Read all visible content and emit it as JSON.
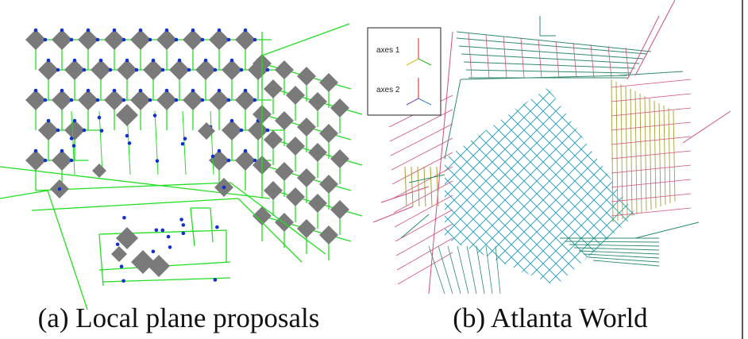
{
  "panels": [
    {
      "caption": "(a) Local plane proposals"
    },
    {
      "caption": "(b) Atlanta World",
      "legend": [
        "axes 1",
        "axes 2"
      ]
    }
  ]
}
